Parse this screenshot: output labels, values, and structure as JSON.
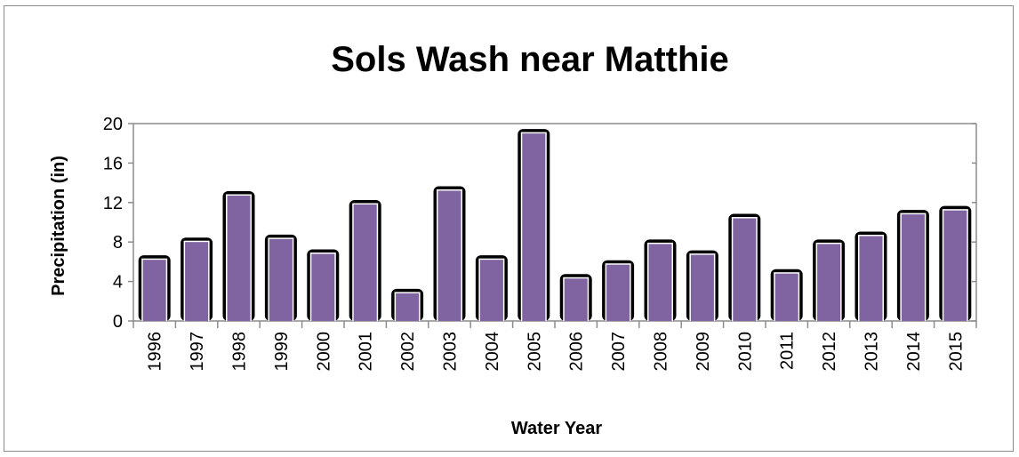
{
  "chart_data": {
    "type": "bar",
    "title": "Sols Wash near Matthie",
    "xlabel": "Water Year",
    "ylabel": "Precipitation (in)",
    "ylim": [
      0,
      20
    ],
    "yticks": [
      0,
      4,
      8,
      12,
      16,
      20
    ],
    "grid": false,
    "legend": "none",
    "categories": [
      "1996",
      "1997",
      "1998",
      "1999",
      "2000",
      "2001",
      "2002",
      "2003",
      "2004",
      "2005",
      "2006",
      "2007",
      "2008",
      "2009",
      "2010",
      "2011",
      "2012",
      "2013",
      "2014",
      "2015"
    ],
    "values": [
      6.2,
      8.0,
      12.7,
      8.3,
      6.8,
      11.8,
      2.8,
      13.2,
      6.2,
      19.0,
      4.3,
      5.7,
      7.8,
      6.7,
      10.4,
      4.8,
      7.8,
      8.6,
      10.8,
      11.2
    ],
    "colors": {
      "bar_fill": "#8064a2",
      "bar_shadow": "#000000",
      "bar_highlight": "#ffffff",
      "axis": "#8c8c8c"
    }
  }
}
